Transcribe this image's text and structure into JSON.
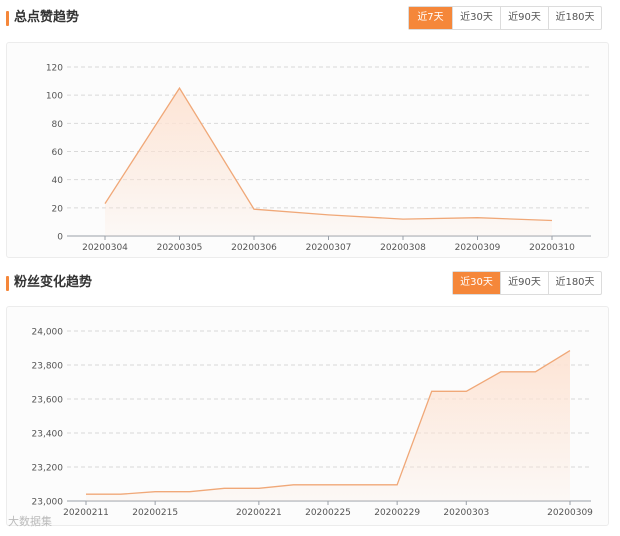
{
  "section1": {
    "title": "总点赞趋势",
    "tabs": [
      {
        "label": "近7天",
        "active": true
      },
      {
        "label": "近30天",
        "active": false
      },
      {
        "label": "近90天",
        "active": false
      },
      {
        "label": "近180天",
        "active": false
      }
    ]
  },
  "section2": {
    "title": "粉丝变化趋势",
    "tabs": [
      {
        "label": "近30天",
        "active": true
      },
      {
        "label": "近90天",
        "active": false
      },
      {
        "label": "近180天",
        "active": false
      }
    ]
  },
  "watermark": "大数据集",
  "colors": {
    "accent": "#f5873a",
    "line": "#f0a878",
    "fill": "#fde3d3",
    "grid": "#d9d9d9"
  },
  "chart_data": [
    {
      "type": "area",
      "x": [
        "20200304",
        "20200305",
        "20200306",
        "20200307",
        "20200308",
        "20200309",
        "20200310"
      ],
      "series": [
        {
          "values": [
            23,
            105,
            19,
            15,
            12,
            13,
            11
          ]
        }
      ],
      "y_ticks": [
        "0",
        "20",
        "40",
        "60",
        "80",
        "100",
        "120"
      ],
      "ylim": [
        0,
        120
      ],
      "grid": true
    },
    {
      "type": "area",
      "x": [
        "20200211",
        "20200213",
        "20200215",
        "20200217",
        "20200219",
        "20200221",
        "20200223",
        "20200225",
        "20200227",
        "20200229",
        "20200301",
        "20200303",
        "20200305",
        "20200307",
        "20200309"
      ],
      "x_tick_labels": [
        "20200211",
        "20200215",
        "20200221",
        "20200225",
        "20200229",
        "20200303",
        "20200309"
      ],
      "series": [
        {
          "values": [
            23040,
            23040,
            23055,
            23055,
            23075,
            23075,
            23095,
            23095,
            23095,
            23095,
            23645,
            23645,
            23760,
            23760,
            23885
          ]
        }
      ],
      "y_ticks": [
        "23,000",
        "23,200",
        "23,400",
        "23,600",
        "23,800",
        "24,000"
      ],
      "ylim": [
        23000,
        24000
      ],
      "grid": true
    }
  ]
}
